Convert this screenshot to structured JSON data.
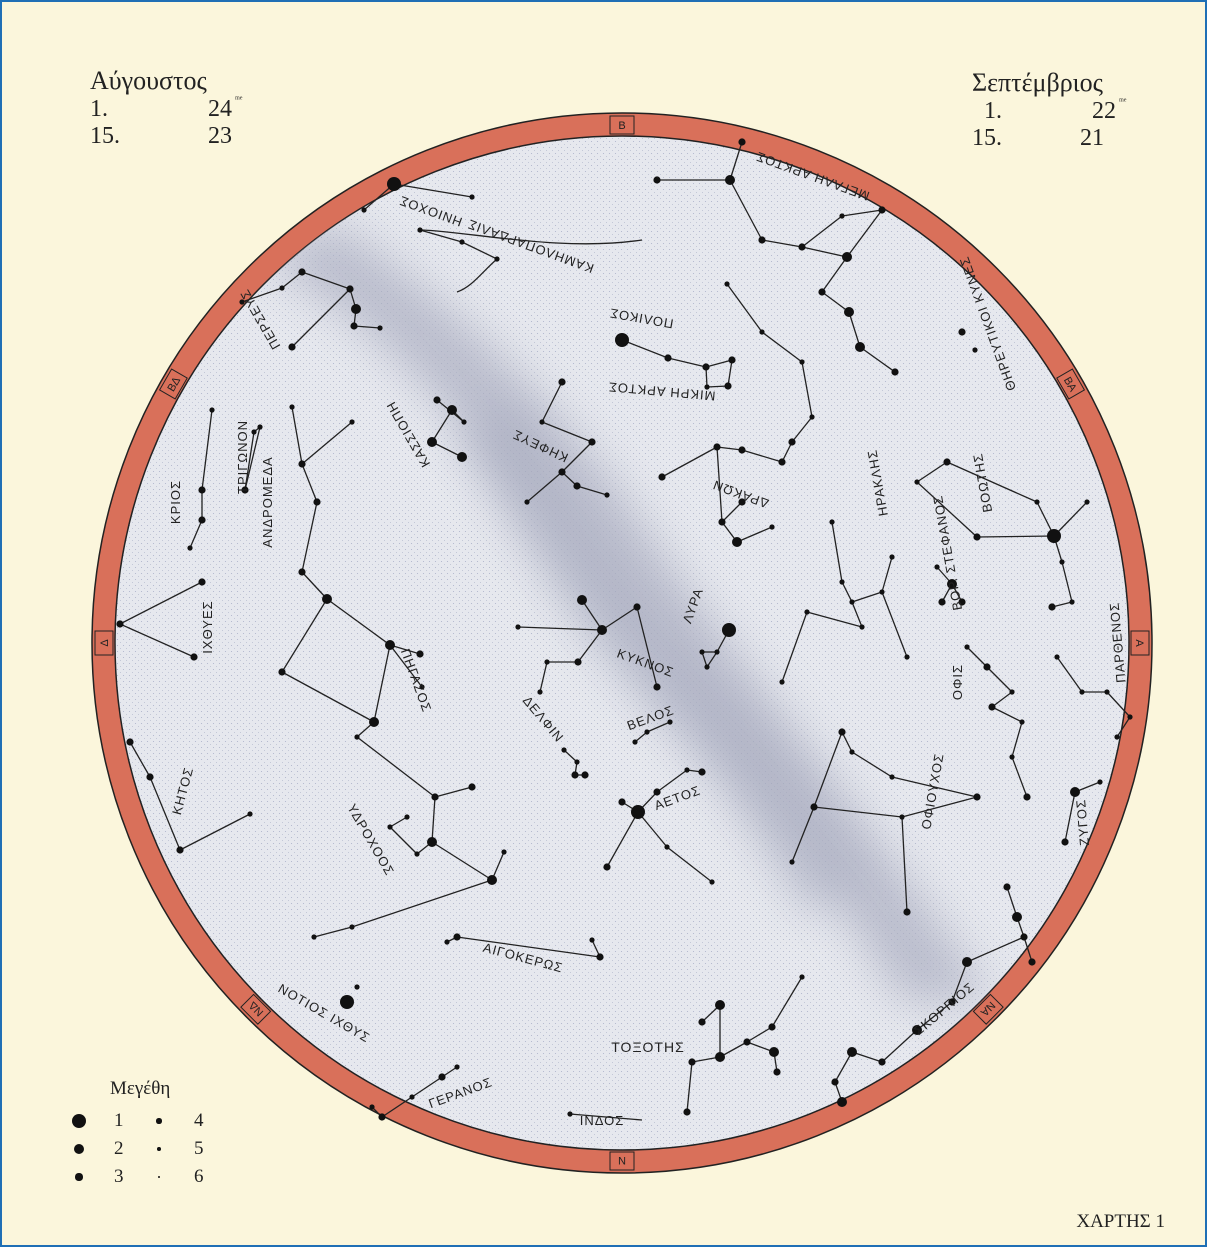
{
  "months": {
    "august": {
      "name": "Αύγουστος",
      "rows": [
        {
          "day": "1.",
          "hour": "24",
          "suffix": "ᵐᵉ"
        },
        {
          "day": "15.",
          "hour": "23",
          "suffix": ""
        }
      ]
    },
    "september": {
      "name": "Σεπτέμβριος",
      "rows": [
        {
          "day": "1.",
          "hour": "22",
          "suffix": "ᵐᵉ"
        },
        {
          "day": "15.",
          "hour": "21",
          "suffix": ""
        }
      ]
    }
  },
  "legend": {
    "title": "Μεγέθη",
    "items": [
      {
        "label": "1",
        "mag": 1
      },
      {
        "label": "4",
        "mag": 4
      },
      {
        "label": "2",
        "mag": 2
      },
      {
        "label": "5",
        "mag": 5
      },
      {
        "label": "3",
        "mag": 3
      },
      {
        "label": "6",
        "mag": 6
      }
    ]
  },
  "map_label": "ΧΑΡΤΗΣ 1",
  "directions": {
    "north": "Β",
    "south": "Ν",
    "east": "Α",
    "west": "Δ",
    "ne": "ΒΑ",
    "nw": "ΒΔ",
    "se": "ΝΑ",
    "sw": "ΝΔ"
  },
  "constellations": {
    "ursa_major": "ΜΕΓΑΛΗ ΑΡΚΤΟΣ",
    "ursa_minor": "ΜΙΚΡΗ ΑΡΚΤΟΣ",
    "polaris": "ΠΟΛΙΚΟΣ",
    "draco": "ΔΡΑΚΩΝ",
    "cepheus": "ΚΗΦΕΥΣ",
    "cassiopeia": "ΚΑΣΣΙΟΠΗ",
    "perseus": "ΠΕΡΣΕΥΣ",
    "auriga": "ΗΝΙΟΧΟΣ",
    "camelopardalis": "ΚΑΜΗΛΟΠΑΡΔΑΛΙΣ",
    "canes_venatici": "ΘΗΡΕΥΤΙΚΟΙ ΚΥΝΕΣ",
    "bootes": "ΒΟΩΤΗΣ",
    "hercules": "ΗΡΑΚΛΗΣ",
    "corona_borealis": "ΒΟΡ. ΣΤΕΦΑΝΟΣ",
    "serpens": "ΟΦΙΣ",
    "virgo": "ΠΑΡΘΕΝΟΣ",
    "libra": "ΖΥΓΟΣ",
    "ophiuchus": "ΟΦΙΟΥΧΟΣ",
    "scorpius": "ΣΚΟΡΠΙΟΣ",
    "sagittarius": "ΤΟΞΟΤΗΣ",
    "aquila": "ΑΕΤΟΣ",
    "sagitta": "ΒΕΛΟΣ",
    "cygnus": "ΚΥΚΝΟΣ",
    "lyra": "ΛΥΡΑ",
    "delphinus": "ΔΕΛΦΙΝ",
    "pegasus": "ΠΗΓΑΣΟΣ",
    "andromeda": "ΑΝΔΡΟΜΕΔΑ",
    "triangulum": "ΤΡΙΓΩΝΟΝ",
    "aries": "ΚΡΙΟΣ",
    "pisces": "ΙΧΘΥΕΣ",
    "cetus": "ΚΗΤΟΣ",
    "aquarius": "ΥΔΡΟΧΟΟΣ",
    "capricornus": "ΑΙΓΟΚΕΡΩΣ",
    "piscis_austrinus": "ΝΟΤΙΟΣ ΙΧΘΥΣ",
    "grus": "ΓΕΡΑΝΟΣ",
    "indus": "ΙΝΔΟΣ"
  },
  "colors": {
    "background": "#fbf6dc",
    "ring": "#d9705a",
    "sky": "#e4e6ec",
    "milky_way": "#b4b6c4",
    "ink": "#111111",
    "frame": "#1f6fb5"
  }
}
